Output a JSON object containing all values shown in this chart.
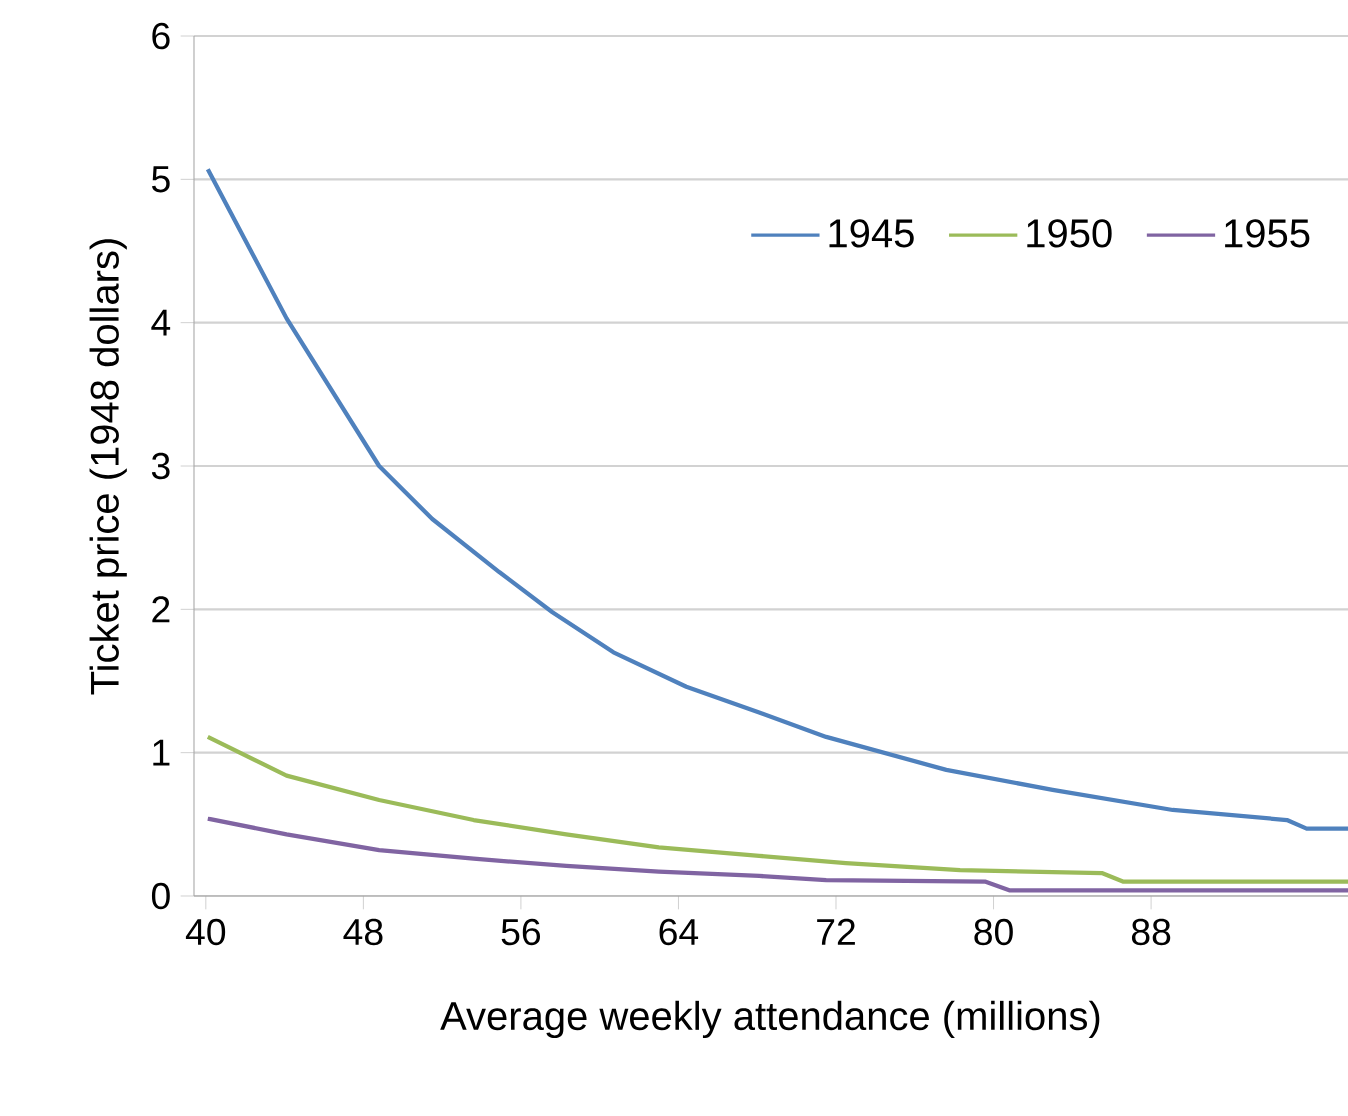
{
  "chart_data": {
    "type": "line",
    "xlabel": "Average weekly attendance (millions)",
    "ylabel": "Ticket price (1948 dollars)",
    "xlim": [
      39.4,
      98
    ],
    "xticks": [
      40,
      48,
      56,
      64,
      72,
      80,
      88
    ],
    "ylim": [
      0,
      6
    ],
    "yticks": [
      0,
      1,
      2,
      3,
      4,
      5,
      6
    ],
    "grid": "y",
    "legend": "top right",
    "marker": "none",
    "line_style": "solid",
    "series": [
      {
        "name": "1945",
        "color": "#4f81bd",
        "x": [
          40.1,
          44.1,
          48.8,
          51.5,
          54.9,
          57.6,
          60.7,
          64.4,
          68.1,
          71.5,
          77.6,
          83.0,
          89.1,
          94.9,
          95.9,
          98.0
        ],
        "values": [
          5.07,
          4.03,
          3.0,
          2.63,
          2.26,
          1.98,
          1.7,
          1.46,
          1.28,
          1.11,
          0.88,
          0.74,
          0.6,
          0.53,
          0.47,
          0.47
        ]
      },
      {
        "name": "1950",
        "color": "#9bbb59",
        "x": [
          40.1,
          44.1,
          48.8,
          53.6,
          58.3,
          63.0,
          68.1,
          72.5,
          78.3,
          85.5,
          86.6,
          98.0
        ],
        "values": [
          1.11,
          0.84,
          0.67,
          0.53,
          0.43,
          0.34,
          0.28,
          0.23,
          0.18,
          0.16,
          0.1,
          0.1
        ]
      },
      {
        "name": "1955",
        "color": "#8064a2",
        "x": [
          40.1,
          44.1,
          48.8,
          53.6,
          58.3,
          63.0,
          68.1,
          71.5,
          79.6,
          80.8,
          98.0
        ],
        "values": [
          0.54,
          0.43,
          0.32,
          0.26,
          0.21,
          0.17,
          0.14,
          0.11,
          0.1,
          0.04,
          0.04
        ]
      }
    ]
  }
}
